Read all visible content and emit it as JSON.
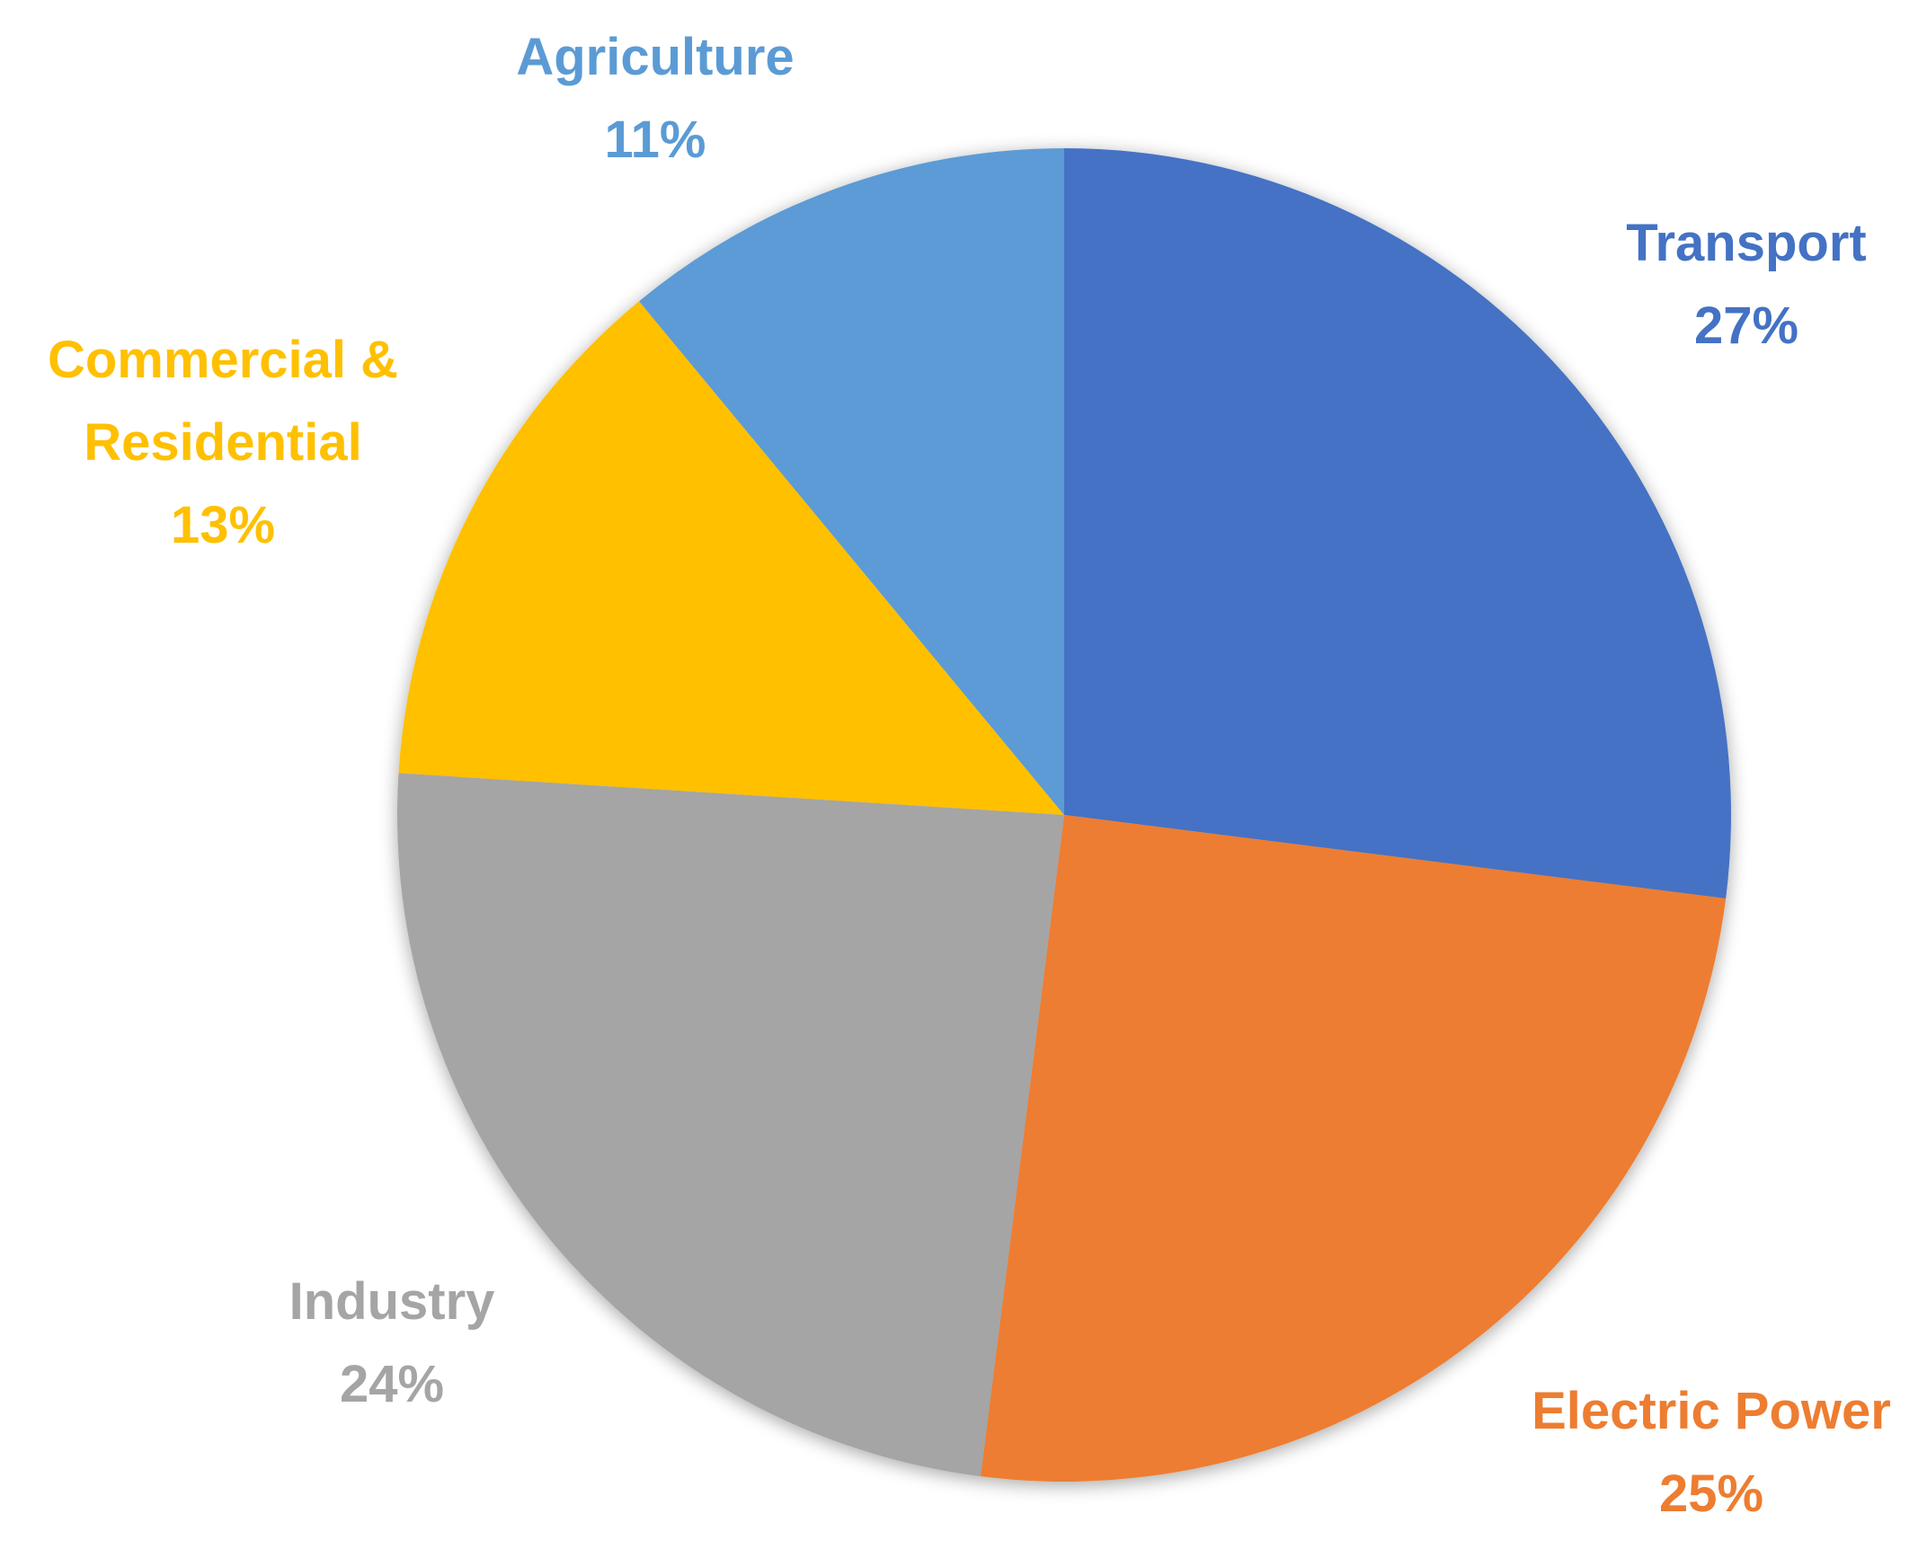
{
  "chart_data": {
    "type": "pie",
    "title": "",
    "start_angle_deg": 0,
    "direction": "clockwise",
    "legend": "none",
    "slices": [
      {
        "label": "Transport",
        "value": 27,
        "value_label": "27%",
        "color": "#4472C4",
        "label_lines": [
          "Transport",
          "27%"
        ]
      },
      {
        "label": "Electric Power",
        "value": 25,
        "value_label": "25%",
        "color": "#ED7D31",
        "label_lines": [
          "Electric Power",
          "25%"
        ]
      },
      {
        "label": "Industry",
        "value": 24,
        "value_label": "24%",
        "color": "#A5A5A5",
        "label_lines": [
          "Industry",
          "24%"
        ]
      },
      {
        "label": "Commercial & Residential",
        "value": 13,
        "value_label": "13%",
        "color": "#FFC000",
        "label_lines": [
          "Commercial &",
          "Residential",
          "13%"
        ]
      },
      {
        "label": "Agriculture",
        "value": 11,
        "value_label": "11%",
        "color": "#5B9BD5",
        "label_lines": [
          "Agriculture",
          "11%"
        ]
      }
    ]
  }
}
